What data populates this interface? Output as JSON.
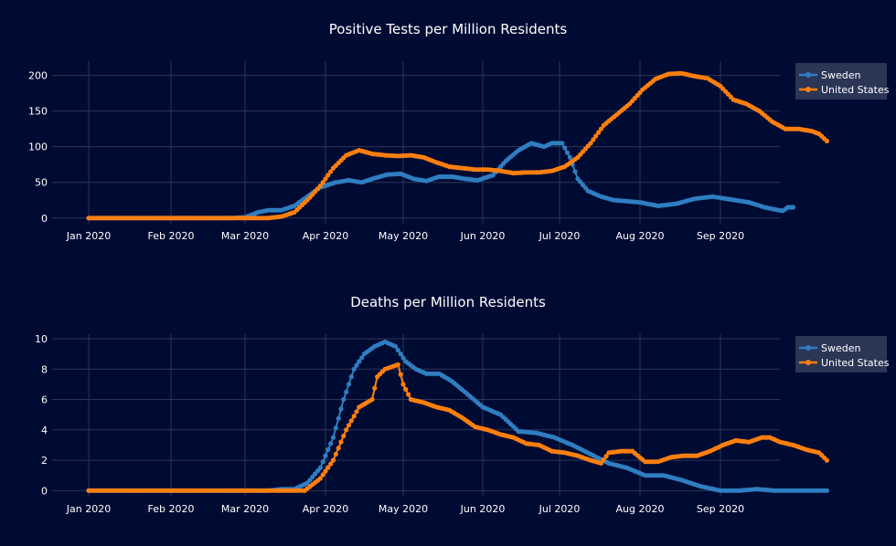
{
  "colors": {
    "background": "#000b33",
    "grid": "#2b3556",
    "legend_bg": "#2b3556",
    "sweden": "#2f7ec1",
    "united_states": "#ff7f0e"
  },
  "chart_data": [
    {
      "type": "line",
      "title": "Positive Tests per Million Residents",
      "xlabel": "",
      "ylabel": "",
      "x_ticks": [
        "Jan 2020",
        "Feb 2020",
        "Mar 2020",
        "Apr 2020",
        "May 2020",
        "Jun 2020",
        "Jul 2020",
        "Aug 2020",
        "Sep 2020"
      ],
      "y_ticks": [
        "0",
        "50",
        "100",
        "150",
        "200"
      ],
      "ylim": [
        -8,
        220
      ],
      "grid": true,
      "legend": "top-right",
      "markers": true,
      "series": [
        {
          "name": "Sweden",
          "points": [
            [
              "2020-01-01",
              0
            ],
            [
              "2020-02-25",
              0
            ],
            [
              "2020-03-01",
              1
            ],
            [
              "2020-03-06",
              8
            ],
            [
              "2020-03-10",
              11
            ],
            [
              "2020-03-15",
              11
            ],
            [
              "2020-03-20",
              17
            ],
            [
              "2020-03-25",
              30
            ],
            [
              "2020-03-30",
              43
            ],
            [
              "2020-04-05",
              50
            ],
            [
              "2020-04-10",
              53
            ],
            [
              "2020-04-15",
              50
            ],
            [
              "2020-04-20",
              56
            ],
            [
              "2020-04-25",
              61
            ],
            [
              "2020-04-30",
              62
            ],
            [
              "2020-05-05",
              55
            ],
            [
              "2020-05-10",
              52
            ],
            [
              "2020-05-15",
              58
            ],
            [
              "2020-05-20",
              58
            ],
            [
              "2020-05-25",
              55
            ],
            [
              "2020-05-30",
              53
            ],
            [
              "2020-06-05",
              60
            ],
            [
              "2020-06-10",
              80
            ],
            [
              "2020-06-15",
              95
            ],
            [
              "2020-06-20",
              105
            ],
            [
              "2020-06-25",
              100
            ],
            [
              "2020-06-28",
              105
            ],
            [
              "2020-07-02",
              105
            ],
            [
              "2020-07-05",
              85
            ],
            [
              "2020-07-08",
              55
            ],
            [
              "2020-07-12",
              38
            ],
            [
              "2020-07-17",
              30
            ],
            [
              "2020-07-22",
              25
            ],
            [
              "2020-08-01",
              22
            ],
            [
              "2020-08-08",
              17
            ],
            [
              "2020-08-15",
              20
            ],
            [
              "2020-08-22",
              27
            ],
            [
              "2020-08-29",
              30
            ],
            [
              "2020-09-05",
              26
            ],
            [
              "2020-09-12",
              22
            ],
            [
              "2020-09-18",
              15
            ],
            [
              "2020-09-22",
              12
            ],
            [
              "2020-09-25",
              10
            ],
            [
              "2020-09-27",
              15
            ],
            [
              "2020-09-29",
              15
            ]
          ]
        },
        {
          "name": "United States",
          "points": [
            [
              "2020-01-01",
              0
            ],
            [
              "2020-02-28",
              0
            ],
            [
              "2020-03-10",
              0
            ],
            [
              "2020-03-15",
              2
            ],
            [
              "2020-03-20",
              8
            ],
            [
              "2020-03-25",
              25
            ],
            [
              "2020-03-30",
              45
            ],
            [
              "2020-04-04",
              70
            ],
            [
              "2020-04-09",
              88
            ],
            [
              "2020-04-14",
              95
            ],
            [
              "2020-04-19",
              90
            ],
            [
              "2020-04-24",
              88
            ],
            [
              "2020-04-29",
              87
            ],
            [
              "2020-05-04",
              88
            ],
            [
              "2020-05-09",
              85
            ],
            [
              "2020-05-14",
              78
            ],
            [
              "2020-05-19",
              72
            ],
            [
              "2020-05-24",
              70
            ],
            [
              "2020-05-29",
              68
            ],
            [
              "2020-06-03",
              68
            ],
            [
              "2020-06-08",
              66
            ],
            [
              "2020-06-13",
              63
            ],
            [
              "2020-06-18",
              64
            ],
            [
              "2020-06-23",
              64
            ],
            [
              "2020-06-28",
              66
            ],
            [
              "2020-07-03",
              72
            ],
            [
              "2020-07-08",
              85
            ],
            [
              "2020-07-13",
              105
            ],
            [
              "2020-07-18",
              130
            ],
            [
              "2020-07-23",
              145
            ],
            [
              "2020-07-28",
              160
            ],
            [
              "2020-08-02",
              180
            ],
            [
              "2020-08-07",
              195
            ],
            [
              "2020-08-12",
              202
            ],
            [
              "2020-08-17",
              203
            ],
            [
              "2020-08-22",
              199
            ],
            [
              "2020-08-27",
              196
            ],
            [
              "2020-09-01",
              185
            ],
            [
              "2020-09-06",
              166
            ],
            [
              "2020-09-11",
              160
            ],
            [
              "2020-09-16",
              150
            ],
            [
              "2020-09-21",
              135
            ],
            [
              "2020-09-26",
              125
            ],
            [
              "2020-10-01",
              125
            ],
            [
              "2020-10-06",
              122
            ],
            [
              "2020-10-09",
              118
            ],
            [
              "2020-10-12",
              108
            ]
          ]
        }
      ]
    },
    {
      "type": "line",
      "title": "Deaths per Million Residents",
      "xlabel": "",
      "ylabel": "",
      "x_ticks": [
        "Jan 2020",
        "Feb 2020",
        "Mar 2020",
        "Apr 2020",
        "May 2020",
        "Jun 2020",
        "Jul 2020",
        "Aug 2020",
        "Sep 2020"
      ],
      "y_ticks": [
        "0",
        "2",
        "4",
        "6",
        "8",
        "10"
      ],
      "ylim": [
        -0.4,
        10.3
      ],
      "grid": true,
      "legend": "top-right",
      "markers": true,
      "series": [
        {
          "name": "Sweden",
          "points": [
            [
              "2020-01-01",
              0
            ],
            [
              "2020-03-10",
              0
            ],
            [
              "2020-03-15",
              0.1
            ],
            [
              "2020-03-20",
              0.1
            ],
            [
              "2020-03-25",
              0.5
            ],
            [
              "2020-03-30",
              1.5
            ],
            [
              "2020-04-04",
              3.5
            ],
            [
              "2020-04-08",
              6
            ],
            [
              "2020-04-12",
              8
            ],
            [
              "2020-04-16",
              9
            ],
            [
              "2020-04-20",
              9.5
            ],
            [
              "2020-04-24",
              9.8
            ],
            [
              "2020-04-28",
              9.5
            ],
            [
              "2020-05-02",
              8.5
            ],
            [
              "2020-05-06",
              8
            ],
            [
              "2020-05-10",
              7.7
            ],
            [
              "2020-05-15",
              7.7
            ],
            [
              "2020-05-20",
              7.2
            ],
            [
              "2020-05-25",
              6.5
            ],
            [
              "2020-06-01",
              5.5
            ],
            [
              "2020-06-08",
              5
            ],
            [
              "2020-06-15",
              3.9
            ],
            [
              "2020-06-22",
              3.8
            ],
            [
              "2020-06-29",
              3.5
            ],
            [
              "2020-07-06",
              3
            ],
            [
              "2020-07-13",
              2.4
            ],
            [
              "2020-07-20",
              1.8
            ],
            [
              "2020-07-27",
              1.5
            ],
            [
              "2020-08-03",
              1
            ],
            [
              "2020-08-10",
              1
            ],
            [
              "2020-08-17",
              0.7
            ],
            [
              "2020-08-24",
              0.3
            ],
            [
              "2020-09-01",
              0
            ],
            [
              "2020-09-08",
              0
            ],
            [
              "2020-09-15",
              0.1
            ],
            [
              "2020-09-22",
              0
            ],
            [
              "2020-10-01",
              0
            ],
            [
              "2020-10-12",
              0
            ]
          ]
        },
        {
          "name": "United States",
          "points": [
            [
              "2020-01-01",
              0
            ],
            [
              "2020-03-18",
              0
            ],
            [
              "2020-03-24",
              0
            ],
            [
              "2020-03-30",
              0.8
            ],
            [
              "2020-04-04",
              2
            ],
            [
              "2020-04-09",
              4
            ],
            [
              "2020-04-14",
              5.5
            ],
            [
              "2020-04-19",
              6
            ],
            [
              "2020-04-21",
              7.5
            ],
            [
              "2020-04-24",
              8
            ],
            [
              "2020-04-29",
              8.3
            ],
            [
              "2020-05-01",
              7
            ],
            [
              "2020-05-04",
              6
            ],
            [
              "2020-05-09",
              5.8
            ],
            [
              "2020-05-14",
              5.5
            ],
            [
              "2020-05-19",
              5.3
            ],
            [
              "2020-05-24",
              4.8
            ],
            [
              "2020-05-29",
              4.2
            ],
            [
              "2020-06-03",
              4
            ],
            [
              "2020-06-08",
              3.7
            ],
            [
              "2020-06-13",
              3.5
            ],
            [
              "2020-06-18",
              3.1
            ],
            [
              "2020-06-23",
              3
            ],
            [
              "2020-06-28",
              2.6
            ],
            [
              "2020-07-03",
              2.5
            ],
            [
              "2020-07-08",
              2.3
            ],
            [
              "2020-07-13",
              2
            ],
            [
              "2020-07-17",
              1.8
            ],
            [
              "2020-07-20",
              2.5
            ],
            [
              "2020-07-25",
              2.6
            ],
            [
              "2020-07-29",
              2.6
            ],
            [
              "2020-08-03",
              1.9
            ],
            [
              "2020-08-08",
              1.9
            ],
            [
              "2020-08-13",
              2.2
            ],
            [
              "2020-08-18",
              2.3
            ],
            [
              "2020-08-23",
              2.3
            ],
            [
              "2020-08-28",
              2.6
            ],
            [
              "2020-09-02",
              3
            ],
            [
              "2020-09-07",
              3.3
            ],
            [
              "2020-09-12",
              3.2
            ],
            [
              "2020-09-17",
              3.5
            ],
            [
              "2020-09-20",
              3.5
            ],
            [
              "2020-09-24",
              3.2
            ],
            [
              "2020-09-29",
              3
            ],
            [
              "2020-10-04",
              2.7
            ],
            [
              "2020-10-09",
              2.5
            ],
            [
              "2020-10-12",
              2
            ]
          ]
        }
      ]
    }
  ]
}
